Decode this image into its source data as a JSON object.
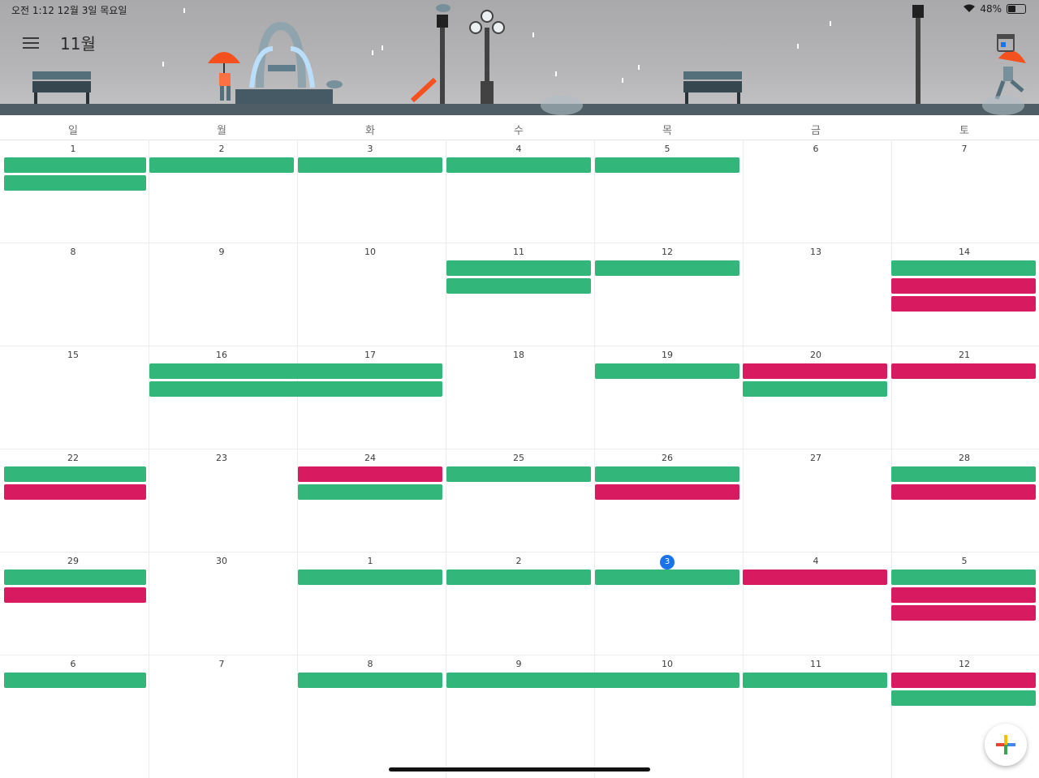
{
  "status_bar": {
    "time_date": "오전 1:12   12월 3일 목요일",
    "battery": "48%"
  },
  "header": {
    "month": "11월",
    "menu_icon": "hamburger-menu-icon",
    "calendar_icon": "calendar-today-icon"
  },
  "weekdays": [
    "일",
    "월",
    "화",
    "수",
    "목",
    "금",
    "토"
  ],
  "weeks": [
    [
      "1",
      "2",
      "3",
      "4",
      "5",
      "6",
      "7"
    ],
    [
      "8",
      "9",
      "10",
      "11",
      "12",
      "13",
      "14"
    ],
    [
      "15",
      "16",
      "17",
      "18",
      "19",
      "20",
      "21"
    ],
    [
      "22",
      "23",
      "24",
      "25",
      "26",
      "27",
      "28"
    ],
    [
      "29",
      "30",
      "1",
      "2",
      "3",
      "4",
      "5"
    ],
    [
      "6",
      "7",
      "8",
      "9",
      "10",
      "11",
      "12"
    ]
  ],
  "today": "3",
  "colors": {
    "event_green": "#33b679",
    "event_pink": "#d81b60",
    "today_blue": "#1a73e8"
  },
  "fab_icon": "add-plus-icon"
}
